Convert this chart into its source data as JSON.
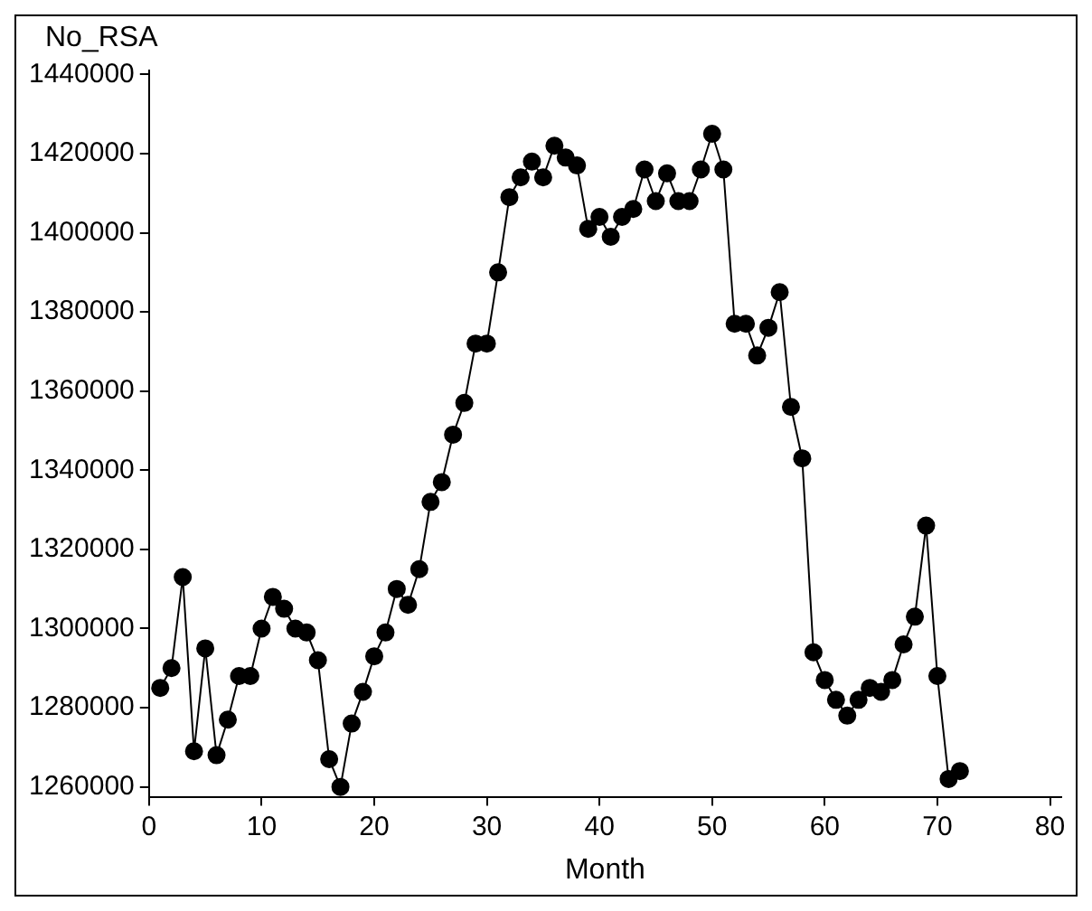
{
  "chart_data": {
    "type": "line",
    "xlabel": "Month",
    "ylabel": "No_RSA",
    "x": [
      1,
      2,
      3,
      4,
      5,
      6,
      7,
      8,
      9,
      10,
      11,
      12,
      13,
      14,
      15,
      16,
      17,
      18,
      19,
      20,
      21,
      22,
      23,
      24,
      25,
      26,
      27,
      28,
      29,
      30,
      31,
      32,
      33,
      34,
      35,
      36,
      37,
      38,
      39,
      40,
      41,
      42,
      43,
      44,
      45,
      46,
      47,
      48,
      49,
      50,
      51,
      52,
      53,
      54,
      55,
      56,
      57,
      58,
      59,
      60,
      61,
      62,
      63,
      64,
      65,
      66,
      67,
      68,
      69,
      70,
      71,
      72
    ],
    "series": [
      {
        "color": "#000000",
        "values": [
          1285000,
          1290000,
          1313000,
          1269000,
          1295000,
          1268000,
          1277000,
          1288000,
          1288000,
          1300000,
          1308000,
          1305000,
          1300000,
          1299000,
          1292000,
          1267000,
          1260000,
          1276000,
          1284000,
          1293000,
          1299000,
          1310000,
          1306000,
          1315000,
          1332000,
          1337000,
          1349000,
          1357000,
          1372000,
          1372000,
          1390000,
          1409000,
          1414000,
          1418000,
          1414000,
          1422000,
          1419000,
          1417000,
          1401000,
          1404000,
          1399000,
          1404000,
          1406000,
          1416000,
          1408000,
          1415000,
          1408000,
          1408000,
          1416000,
          1425000,
          1416000,
          1377000,
          1377000,
          1369000,
          1376000,
          1385000,
          1356000,
          1343000,
          1294000,
          1287000,
          1282000,
          1278000,
          1282000,
          1285000,
          1284000,
          1287000,
          1296000,
          1303000,
          1326000,
          1288000,
          1262000,
          1264000
        ]
      }
    ],
    "xlim": [
      0,
      81
    ],
    "xticks": [
      0,
      10,
      20,
      30,
      40,
      50,
      60,
      70,
      80
    ],
    "ylim": [
      1257500,
      1441000
    ],
    "yticks": [
      1260000,
      1280000,
      1300000,
      1320000,
      1340000,
      1360000,
      1380000,
      1400000,
      1420000,
      1440000
    ],
    "grid": false,
    "legend": false,
    "marker": "circle",
    "line_style": "solid"
  }
}
